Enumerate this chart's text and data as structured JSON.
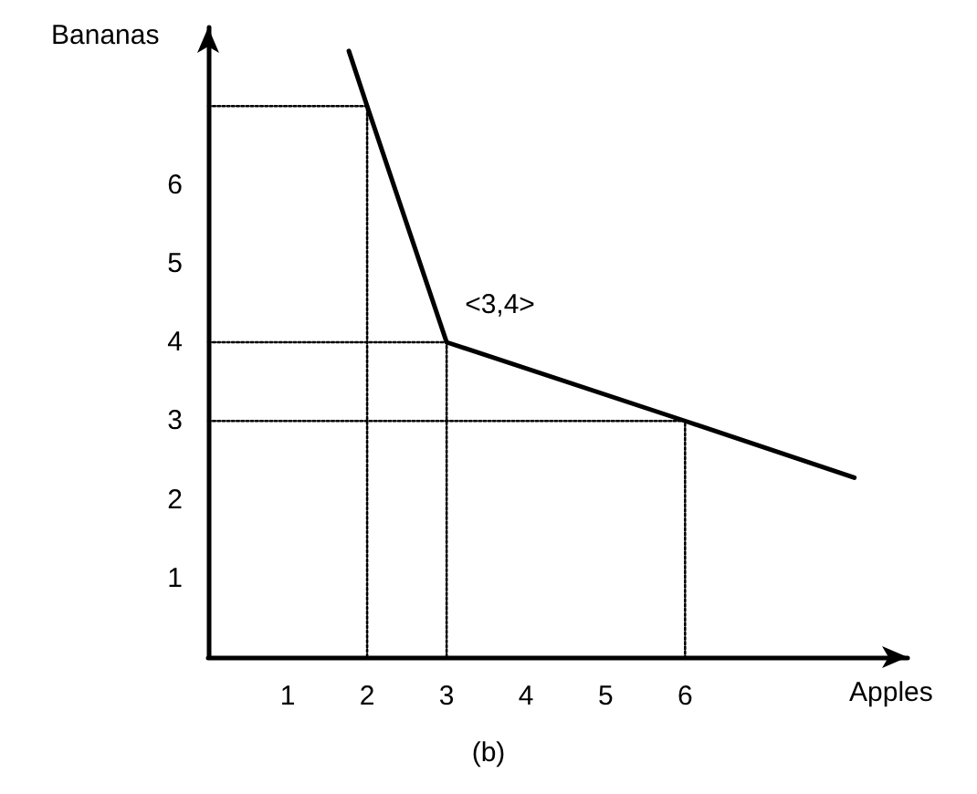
{
  "chart_data": {
    "type": "line",
    "xlabel": "Apples",
    "ylabel": "Bananas",
    "xlim": [
      0,
      8.8
    ],
    "ylim": [
      0,
      8
    ],
    "xticks": [
      1,
      2,
      3,
      4,
      5,
      6
    ],
    "yticks": [
      1,
      2,
      3,
      4,
      5,
      6
    ],
    "grid": false,
    "marker": "none",
    "series": [
      {
        "color": "#000000",
        "line_style": "solid",
        "x": [
          1.77,
          2,
          3,
          6,
          8.13
        ],
        "values": [
          7.7,
          7,
          4,
          3,
          2.28
        ]
      },
      {
        "color": "#000000",
        "line_style": "dotted",
        "x": [
          0,
          2,
          2
        ],
        "values": [
          7,
          7,
          0
        ]
      },
      {
        "color": "#000000",
        "line_style": "dotted",
        "x": [
          0,
          3,
          3
        ],
        "values": [
          4,
          4,
          0
        ]
      },
      {
        "color": "#000000",
        "line_style": "dotted",
        "x": [
          0,
          6,
          6
        ],
        "values": [
          3,
          3,
          0
        ]
      }
    ],
    "annotations": [
      {
        "text": "<3,4>",
        "x": 3,
        "y": 4
      },
      "(b)"
    ]
  }
}
